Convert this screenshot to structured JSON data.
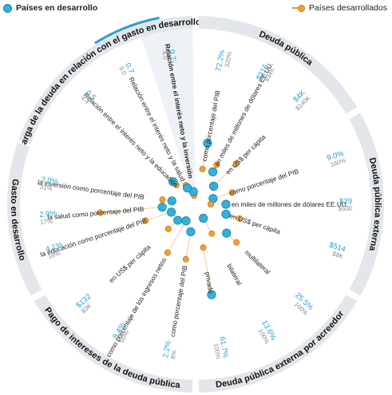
{
  "legend": {
    "developing": "Países en desarrollo",
    "developed": "Países desarrollados"
  },
  "colors": {
    "developing": "#34b0d8",
    "developed": "#f0a03a",
    "ring": "#e3e6eb",
    "highlight": "#2a9fd0"
  },
  "chart_data": {
    "type": "radial",
    "groups": [
      "Carga de la deuda en relación con el gasto en desarrollo",
      "Deuda pública",
      "Deuda pública externa",
      "Deuda pública externa por acreedor",
      "Pago de intereses de la deuda pública",
      "Gasto en desarrollo"
    ],
    "series": [
      {
        "name": "Países en desarrollo",
        "values": [
          "0.7",
          "0.7",
          "0.5",
          "72.2%",
          "$216",
          "$4K",
          "9.0%",
          "$29",
          "$514",
          "25.5%",
          "13.6%",
          "61.7%",
          "2.2%",
          "8.4%",
          "$132",
          "4.1%",
          "2.9%",
          "2.0%"
        ]
      },
      {
        "name": "Países desarrollados",
        "values": [
          "4.0",
          "9.0",
          "4.4",
          "320%",
          "$34K",
          "$140K",
          "160%",
          "$500",
          "$8K",
          "100%",
          "100%",
          "100%",
          "8%",
          "60%",
          "$3K",
          "18%",
          "17%",
          "31%"
        ]
      }
    ],
    "items": [
      {
        "group": 0,
        "label": "Relación entre el interés neto y la inversión",
        "dev": "0.7",
        "adv": "4.0"
      },
      {
        "group": 0,
        "label": "Relación entre el interés neto y la salud",
        "dev": "0.7",
        "adv": "9.0"
      },
      {
        "group": 0,
        "label": "Relación entre el interés neto y la educación",
        "dev": "0.5",
        "adv": "4.4"
      },
      {
        "group": 1,
        "label": "como porcentaje del PIB",
        "dev": "72.2%",
        "adv": "320%"
      },
      {
        "group": 1,
        "label": "en miles de millones de dólares EE.UU.",
        "dev": "$216",
        "adv": "$34K"
      },
      {
        "group": 1,
        "label": "en US$ per cápita",
        "dev": "$4K",
        "adv": "$140K"
      },
      {
        "group": 2,
        "label": "como porcentaje del PIB",
        "dev": "9.0%",
        "adv": "160%"
      },
      {
        "group": 2,
        "label": "en miles de millones de dólares EE.UU.",
        "dev": "$29",
        "adv": "$500"
      },
      {
        "group": 2,
        "label": "en US$ per cápita",
        "dev": "$514",
        "adv": "$8K"
      },
      {
        "group": 3,
        "label": "multilateral",
        "dev": "25.5%",
        "adv": "100%"
      },
      {
        "group": 3,
        "label": "bilateral",
        "dev": "13.6%",
        "adv": "100%"
      },
      {
        "group": 3,
        "label": "privado",
        "dev": "61.7%",
        "adv": "100%"
      },
      {
        "group": 4,
        "label": "como porcentaje del PIB",
        "dev": "2.2%",
        "adv": "8%"
      },
      {
        "group": 4,
        "label": "como porcentaje de los ingresos netos",
        "dev": "8.4%",
        "adv": "60%"
      },
      {
        "group": 4,
        "label": "en US$ per cápita",
        "dev": "$132",
        "adv": "$3K"
      },
      {
        "group": 5,
        "label": "la educación como porcentaje del PIB",
        "dev": "4.1%",
        "adv": "18%"
      },
      {
        "group": 5,
        "label": "la salud como porcentaje del PIB",
        "dev": "2.9%",
        "adv": "17%"
      },
      {
        "group": 5,
        "label": "la inversión como porcentaje del PIB",
        "dev": "2.0%",
        "adv": "31%"
      }
    ]
  }
}
